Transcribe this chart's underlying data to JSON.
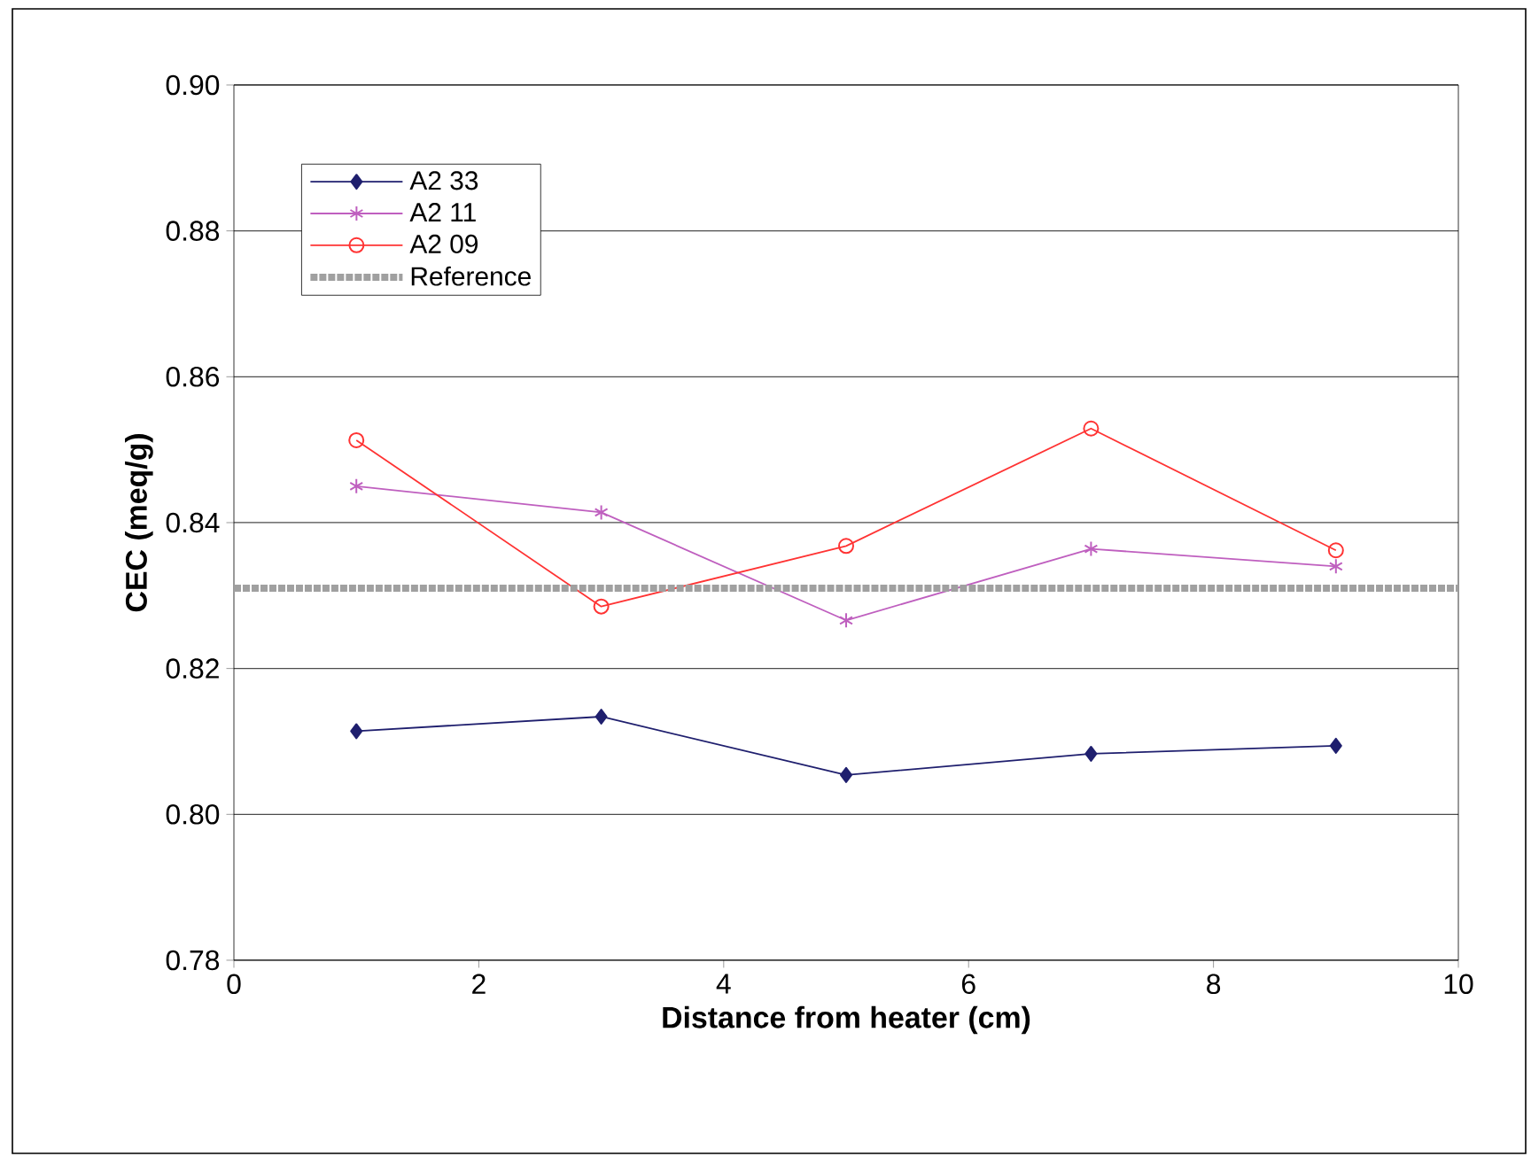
{
  "chart_data": {
    "type": "line",
    "xlabel": "Distance from heater (cm)",
    "ylabel": "CEC (meq/g)",
    "x": [
      1,
      3,
      5,
      7,
      9
    ],
    "series": [
      {
        "name": "A2 33",
        "color": "#1f1f6e",
        "marker": "diamond",
        "values": [
          0.8114,
          0.8134,
          0.8054,
          0.8083,
          0.8094
        ]
      },
      {
        "name": "A2 11",
        "color": "#bf5fbf",
        "marker": "cross",
        "values": [
          0.845,
          0.8414,
          0.8266,
          0.8364,
          0.834
        ]
      },
      {
        "name": "A2 09",
        "color": "#ff3333",
        "marker": "circle",
        "values": [
          0.8513,
          0.8285,
          0.8368,
          0.8529,
          0.8362
        ]
      }
    ],
    "ref_lines": [
      {
        "axis": "y",
        "value": 0.831,
        "label": "Reference",
        "color": "#a0a0a0",
        "line_style": "dotted"
      }
    ],
    "xlim": [
      0,
      10
    ],
    "xticks": [
      0,
      2,
      4,
      6,
      8,
      10
    ],
    "ylim": [
      0.78,
      0.9
    ],
    "yticks": [
      {
        "value": 0.78,
        "label": "0.78"
      },
      {
        "value": 0.8,
        "label": "0.80"
      },
      {
        "value": 0.82,
        "label": "0.82"
      },
      {
        "value": 0.84,
        "label": "0.84"
      },
      {
        "value": 0.86,
        "label": "0.86"
      },
      {
        "value": 0.88,
        "label": "0.88"
      },
      {
        "value": 0.9,
        "label": "0.90"
      }
    ],
    "grid": "y",
    "legend": "top left"
  }
}
